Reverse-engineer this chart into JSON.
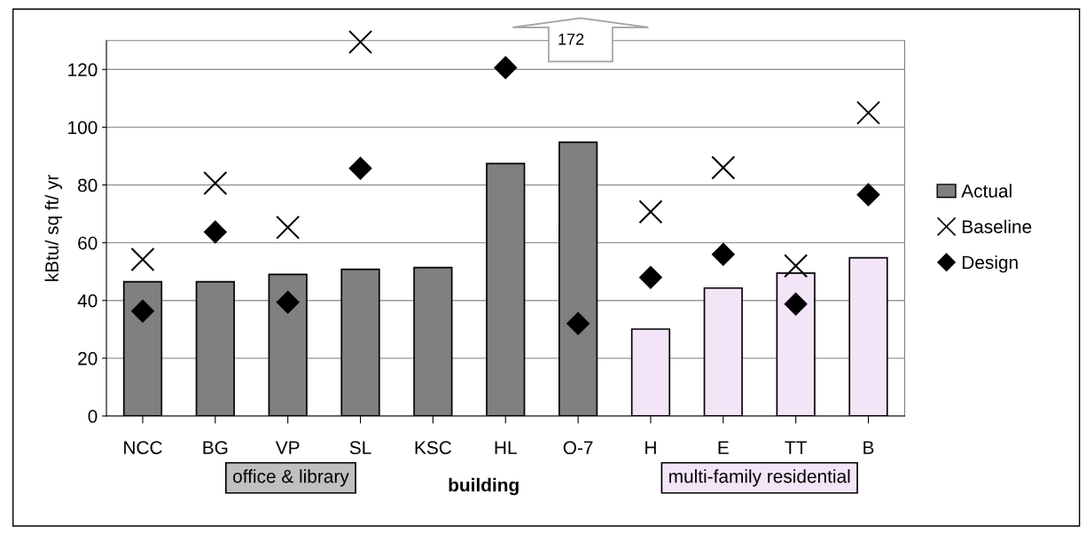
{
  "chart_data": {
    "type": "bar",
    "ylabel": "kBtu/ sq ft/ yr",
    "xlabel": "building",
    "categories": [
      "NCC",
      "BG",
      "VP",
      "SL",
      "KSC",
      "HL",
      "O-7",
      "H",
      "E",
      "TT",
      "B"
    ],
    "series": [
      {
        "name": "Actual",
        "color": "#808080",
        "colors": [
          "#808080",
          "#808080",
          "#808080",
          "#808080",
          "#808080",
          "#808080",
          "#808080",
          "#f3e4f8",
          "#f3e4f8",
          "#f3e4f8",
          "#f3e4f8"
        ],
        "values": [
          46.5,
          46.5,
          49,
          50.8,
          51.4,
          87.4,
          94.8,
          30.1,
          44.3,
          49.5,
          54.8
        ]
      },
      {
        "name": "Baseline",
        "type": "scatter",
        "color": "#000000",
        "marker": "cross",
        "values": [
          54.2,
          80.6,
          65.3,
          129.5,
          null,
          null,
          null,
          70.7,
          86,
          52,
          105
        ]
      },
      {
        "name": "Design",
        "type": "scatter",
        "color": "#000000",
        "marker": "diamond",
        "values": [
          36.3,
          63.7,
          39.4,
          85.8,
          null,
          120.6,
          32,
          48,
          56,
          38.8,
          76.6
        ]
      }
    ],
    "annotations": [
      "172",
      "office & library",
      "multi-family residential"
    ],
    "ylim": [
      0,
      130
    ],
    "yticks": [
      0,
      20,
      40,
      60,
      80,
      100,
      120
    ],
    "grid": "y",
    "legend": "right"
  }
}
